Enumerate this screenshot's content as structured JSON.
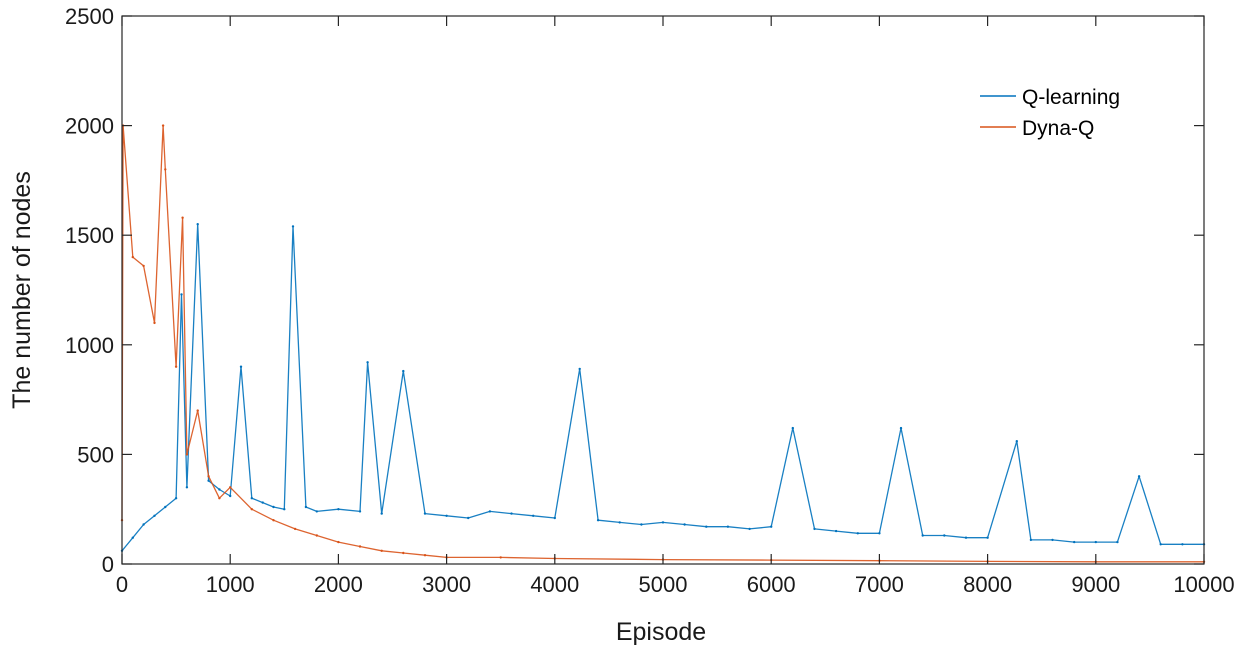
{
  "chart_data": {
    "type": "line",
    "title": "",
    "xlabel": "Episode",
    "ylabel": "The number of nodes",
    "xlim": [
      0,
      10000
    ],
    "ylim": [
      0,
      2500
    ],
    "x_ticks": [
      "0",
      "1000",
      "2000",
      "3000",
      "4000",
      "5000",
      "6000",
      "7000",
      "8000",
      "9000",
      "10000"
    ],
    "y_ticks": [
      "0",
      "500",
      "1000",
      "1500",
      "2000",
      "2500"
    ],
    "grid": false,
    "legend_position": "top-right",
    "series": [
      {
        "name": "Q-learning",
        "color": "#0072BD",
        "x": [
          0,
          100,
          200,
          300,
          400,
          500,
          550,
          600,
          700,
          800,
          900,
          1000,
          1100,
          1200,
          1300,
          1400,
          1500,
          1580,
          1700,
          1800,
          2000,
          2200,
          2270,
          2400,
          2600,
          2800,
          3000,
          3200,
          3400,
          3600,
          3800,
          4000,
          4230,
          4400,
          4600,
          4800,
          5000,
          5200,
          5400,
          5600,
          5800,
          6000,
          6200,
          6400,
          6600,
          6800,
          7000,
          7200,
          7400,
          7600,
          7800,
          8000,
          8270,
          8400,
          8600,
          8800,
          9000,
          9200,
          9400,
          9600,
          9800,
          10000
        ],
        "values": [
          60,
          120,
          180,
          220,
          260,
          300,
          1230,
          350,
          1550,
          380,
          340,
          310,
          900,
          300,
          280,
          260,
          250,
          1540,
          260,
          240,
          250,
          240,
          920,
          230,
          880,
          230,
          220,
          210,
          240,
          230,
          220,
          210,
          890,
          200,
          190,
          180,
          190,
          180,
          170,
          170,
          160,
          170,
          620,
          160,
          150,
          140,
          140,
          620,
          130,
          130,
          120,
          120,
          560,
          110,
          110,
          100,
          100,
          100,
          400,
          90,
          90,
          90
        ]
      },
      {
        "name": "Dyna-Q",
        "color": "#D95319",
        "x": [
          0,
          10,
          100,
          200,
          300,
          380,
          400,
          500,
          560,
          600,
          700,
          800,
          900,
          1000,
          1200,
          1400,
          1600,
          1800,
          2000,
          2200,
          2400,
          2600,
          2800,
          3000,
          3500,
          4000,
          5000,
          6000,
          7000,
          8000,
          9000,
          10000
        ],
        "values": [
          200,
          2000,
          1400,
          1360,
          1100,
          2000,
          1800,
          900,
          1580,
          500,
          700,
          400,
          300,
          350,
          250,
          200,
          160,
          130,
          100,
          80,
          60,
          50,
          40,
          30,
          30,
          25,
          20,
          18,
          15,
          12,
          10,
          10
        ]
      }
    ]
  }
}
